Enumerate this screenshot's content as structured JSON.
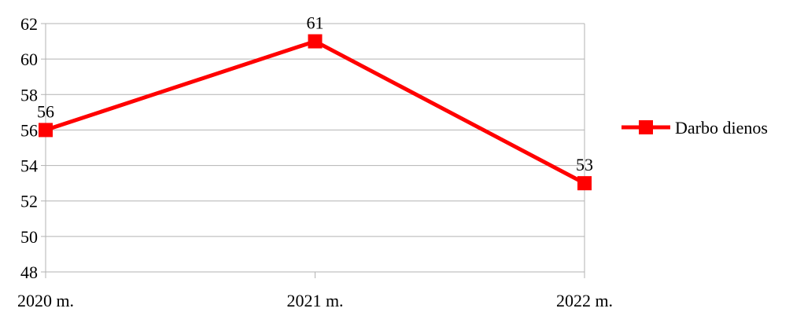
{
  "chart_data": {
    "type": "line",
    "categories": [
      "2020 m.",
      "2021 m.",
      "2022 m."
    ],
    "series": [
      {
        "name": "Darbo dienos",
        "values": [
          56,
          61,
          53
        ],
        "color": "#ff0000",
        "marker": "square"
      }
    ],
    "data_labels": [
      "56",
      "61",
      "53"
    ],
    "ylim": [
      48,
      62
    ],
    "yticks": [
      "48",
      "50",
      "52",
      "54",
      "56",
      "58",
      "60",
      "62"
    ],
    "grid": "horizontal",
    "legend_position": "right"
  }
}
